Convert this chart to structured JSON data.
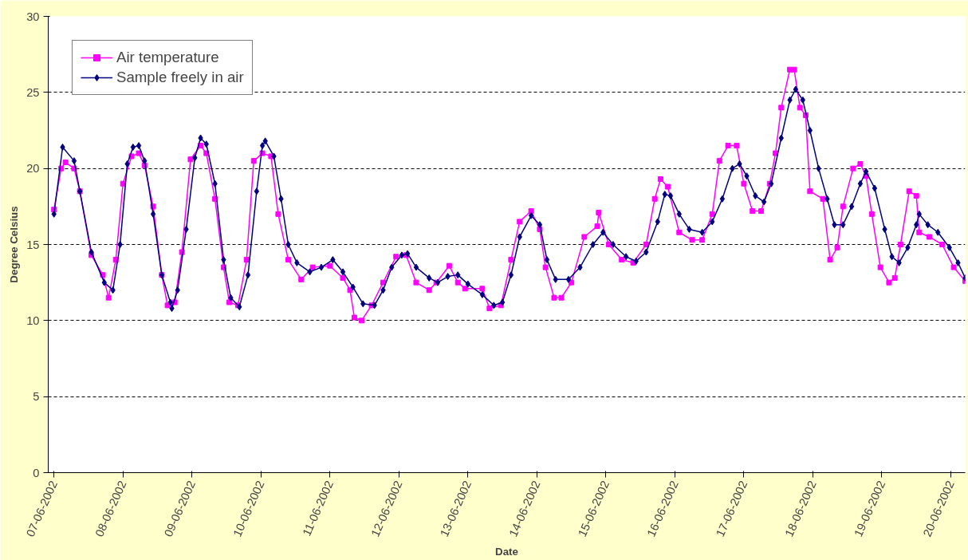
{
  "chart_data": {
    "type": "line",
    "xlabel": "Date",
    "ylabel": "Degree Celsius",
    "xlim": [
      "2002-06-06T22:00",
      "2002-06-20T05:00"
    ],
    "ylim": [
      0,
      30
    ],
    "yticks": [
      0,
      5,
      10,
      15,
      20,
      25,
      30
    ],
    "xticks": [
      {
        "value": "2002-06-07",
        "label": "07-06-2002"
      },
      {
        "value": "2002-06-08",
        "label": "08-06-2002"
      },
      {
        "value": "2002-06-09",
        "label": "09-06-2002"
      },
      {
        "value": "2002-06-10",
        "label": "10-06-2002"
      },
      {
        "value": "2002-06-11",
        "label": "11-06-2002"
      },
      {
        "value": "2002-06-12",
        "label": "12-06-2002"
      },
      {
        "value": "2002-06-13",
        "label": "13-06-2002"
      },
      {
        "value": "2002-06-14",
        "label": "14-06-2002"
      },
      {
        "value": "2002-06-15",
        "label": "15-06-2002"
      },
      {
        "value": "2002-06-16",
        "label": "16-06-2002"
      },
      {
        "value": "2002-06-17",
        "label": "17-06-2002"
      },
      {
        "value": "2002-06-18",
        "label": "18-06-2002"
      },
      {
        "value": "2002-06-19",
        "label": "19-06-2002"
      },
      {
        "value": "2002-06-20",
        "label": "20-06-2002"
      }
    ],
    "grid": "y",
    "legend": "top left",
    "line_style": "solid",
    "series": [
      {
        "name": "Air temperature",
        "color": "#ff00ff",
        "marker": "square",
        "x": [
          "2002-06-07T00:00",
          "2002-06-07T02:30",
          "2002-06-07T04:00",
          "2002-06-07T07:00",
          "2002-06-07T09:00",
          "2002-06-07T13:00",
          "2002-06-07T17:00",
          "2002-06-07T19:00",
          "2002-06-07T21:30",
          "2002-06-08T00:00",
          "2002-06-08T03:00",
          "2002-06-08T05:30",
          "2002-06-08T07:30",
          "2002-06-08T10:30",
          "2002-06-08T13:30",
          "2002-06-08T15:30",
          "2002-06-08T18:00",
          "2002-06-08T20:30",
          "2002-06-08T23:30",
          "2002-06-09T03:00",
          "2002-06-09T05:00",
          "2002-06-09T08:00",
          "2002-06-09T11:00",
          "2002-06-09T13:00",
          "2002-06-09T16:00",
          "2002-06-09T19:00",
          "2002-06-09T21:30",
          "2002-06-10T00:30",
          "2002-06-10T03:30",
          "2002-06-10T06:00",
          "2002-06-10T09:30",
          "2002-06-10T14:00",
          "2002-06-10T18:00",
          "2002-06-11T00:00",
          "2002-06-11T04:30",
          "2002-06-11T07:00",
          "2002-06-11T08:30",
          "2002-06-11T11:00",
          "2002-06-11T14:30",
          "2002-06-11T18:30",
          "2002-06-11T23:00",
          "2002-06-12T02:30",
          "2002-06-12T06:00",
          "2002-06-12T10:30",
          "2002-06-12T13:00",
          "2002-06-12T17:30",
          "2002-06-12T20:30",
          "2002-06-12T23:00",
          "2002-06-13T05:00",
          "2002-06-13T07:30",
          "2002-06-13T11:30",
          "2002-06-13T15:00",
          "2002-06-13T18:00",
          "2002-06-13T22:00",
          "2002-06-14T01:00",
          "2002-06-14T03:00",
          "2002-06-14T06:00",
          "2002-06-14T08:30",
          "2002-06-14T12:00",
          "2002-06-14T16:30",
          "2002-06-14T21:00",
          "2002-06-14T21:30",
          "2002-06-15T01:00",
          "2002-06-15T05:30",
          "2002-06-15T09:30",
          "2002-06-15T14:00",
          "2002-06-15T17:00",
          "2002-06-15T19:00",
          "2002-06-15T21:30",
          "2002-06-16T01:30",
          "2002-06-16T06:00",
          "2002-06-16T09:30",
          "2002-06-16T13:00",
          "2002-06-16T15:30",
          "2002-06-16T18:30",
          "2002-06-16T21:30",
          "2002-06-17T00:00",
          "2002-06-17T03:00",
          "2002-06-17T06:00",
          "2002-06-17T09:00",
          "2002-06-17T11:00",
          "2002-06-17T13:00",
          "2002-06-17T16:00",
          "2002-06-17T17:30",
          "2002-06-17T19:30",
          "2002-06-17T21:30",
          "2002-06-17T23:00",
          "2002-06-18T03:30",
          "2002-06-18T06:00",
          "2002-06-18T08:30",
          "2002-06-18T10:30",
          "2002-06-18T14:00",
          "2002-06-18T16:30",
          "2002-06-18T18:30",
          "2002-06-18T20:30",
          "2002-06-18T23:30",
          "2002-06-19T02:30",
          "2002-06-19T04:30",
          "2002-06-19T06:30",
          "2002-06-19T09:30",
          "2002-06-19T12:00",
          "2002-06-19T13:00",
          "2002-06-19T16:30",
          "2002-06-19T21:00",
          "2002-06-20T01:00",
          "2002-06-20T05:00"
        ],
        "values": [
          17.3,
          20,
          20.4,
          20,
          18.5,
          14.3,
          13,
          11.5,
          14,
          19,
          20.8,
          21.0,
          20.2,
          17.5,
          13,
          11,
          11.2,
          14.5,
          20.6,
          21.5,
          21.0,
          18,
          13.5,
          11.2,
          11.0,
          14,
          20.5,
          21.0,
          20.8,
          17,
          14,
          12.7,
          13.5,
          13.6,
          12.8,
          12,
          10.2,
          10.0,
          11,
          12.5,
          14.2,
          14.3,
          12.5,
          12,
          12.5,
          13.6,
          12.5,
          12.1,
          12.1,
          10.8,
          11,
          14,
          16.5,
          17.2,
          16,
          13.5,
          11.5,
          11.5,
          12.5,
          15.5,
          16.2,
          17.1,
          15,
          14,
          13.8,
          15,
          18,
          19.3,
          18.8,
          15.8,
          15.3,
          15.3,
          17,
          20.5,
          21.5,
          21.5,
          19,
          17.2,
          17.2,
          19,
          21,
          24,
          26.5,
          26.5,
          24,
          23.5,
          18.5,
          18,
          14,
          14.8,
          17.5,
          20,
          20.3,
          19.5,
          17,
          13.5,
          12.5,
          12.8,
          15,
          18.5,
          18.2,
          15.8,
          15.5,
          15,
          13.5,
          12.6
        ]
      },
      {
        "name": "Sample freely in air",
        "color": "#000080",
        "marker": "diamond",
        "x": [
          "2002-06-07T00:00",
          "2002-06-07T03:00",
          "2002-06-07T07:00",
          "2002-06-07T09:00",
          "2002-06-07T13:00",
          "2002-06-07T17:30",
          "2002-06-07T20:30",
          "2002-06-07T23:00",
          "2002-06-08T01:30",
          "2002-06-08T03:30",
          "2002-06-08T05:30",
          "2002-06-08T07:30",
          "2002-06-08T10:30",
          "2002-06-08T13:30",
          "2002-06-08T16:30",
          "2002-06-08T17:00",
          "2002-06-08T19:00",
          "2002-06-08T22:00",
          "2002-06-09T01:00",
          "2002-06-09T03:00",
          "2002-06-09T05:00",
          "2002-06-09T08:00",
          "2002-06-09T11:00",
          "2002-06-09T13:30",
          "2002-06-09T16:30",
          "2002-06-09T19:30",
          "2002-06-09T22:30",
          "2002-06-10T00:30",
          "2002-06-10T01:30",
          "2002-06-10T04:30",
          "2002-06-10T07:00",
          "2002-06-10T09:30",
          "2002-06-10T12:30",
          "2002-06-10T17:00",
          "2002-06-10T21:00",
          "2002-06-11T01:00",
          "2002-06-11T04:30",
          "2002-06-11T08:00",
          "2002-06-11T11:30",
          "2002-06-11T15:30",
          "2002-06-11T18:30",
          "2002-06-11T21:30",
          "2002-06-12T01:00",
          "2002-06-12T03:00",
          "2002-06-12T06:00",
          "2002-06-12T10:30",
          "2002-06-12T13:30",
          "2002-06-12T17:00",
          "2002-06-12T20:30",
          "2002-06-13T00:00",
          "2002-06-13T05:00",
          "2002-06-13T09:00",
          "2002-06-13T12:00",
          "2002-06-13T15:00",
          "2002-06-13T18:00",
          "2002-06-13T22:00",
          "2002-06-14T01:00",
          "2002-06-14T03:30",
          "2002-06-14T06:30",
          "2002-06-14T11:00",
          "2002-06-14T15:00",
          "2002-06-14T19:30",
          "2002-06-14T23:00",
          "2002-06-15T02:30",
          "2002-06-15T07:00",
          "2002-06-15T10:30",
          "2002-06-15T14:00",
          "2002-06-15T18:00",
          "2002-06-15T20:30",
          "2002-06-15T22:30",
          "2002-06-16T01:30",
          "2002-06-16T05:00",
          "2002-06-16T09:30",
          "2002-06-16T13:00",
          "2002-06-16T16:30",
          "2002-06-16T20:00",
          "2002-06-16T22:30",
          "2002-06-17T01:00",
          "2002-06-17T04:00",
          "2002-06-17T07:00",
          "2002-06-17T09:30",
          "2002-06-17T13:00",
          "2002-06-17T16:00",
          "2002-06-17T18:00",
          "2002-06-17T20:30",
          "2002-06-17T23:00",
          "2002-06-18T02:00",
          "2002-06-18T05:00",
          "2002-06-18T07:30",
          "2002-06-18T10:30",
          "2002-06-18T13:30",
          "2002-06-18T16:30",
          "2002-06-18T18:30",
          "2002-06-18T21:30",
          "2002-06-19T01:00",
          "2002-06-19T03:30",
          "2002-06-19T06:00",
          "2002-06-19T09:00",
          "2002-06-19T12:00",
          "2002-06-19T13:00",
          "2002-06-19T16:00",
          "2002-06-19T19:30",
          "2002-06-19T23:30",
          "2002-06-20T02:30",
          "2002-06-20T05:00"
        ],
        "values": [
          17.0,
          21.4,
          20.5,
          18.5,
          14.5,
          12.5,
          12.0,
          15.0,
          20.3,
          21.4,
          21.5,
          20.5,
          17,
          13,
          11.2,
          10.8,
          12,
          16,
          20.7,
          22.0,
          21.6,
          19,
          14,
          11.5,
          10.9,
          13,
          18.5,
          21.5,
          21.8,
          20.8,
          18,
          15,
          13.8,
          13.2,
          13.5,
          14.0,
          13.2,
          12.2,
          11.1,
          11.0,
          12,
          13.5,
          14.3,
          14.4,
          13.5,
          12.8,
          12.5,
          12.9,
          13.0,
          12.4,
          11.7,
          11.0,
          11.2,
          13,
          15.5,
          16.9,
          16.3,
          14,
          12.7,
          12.7,
          13.5,
          15,
          15.8,
          15,
          14.2,
          13.9,
          14.5,
          16.5,
          18.3,
          18.2,
          17,
          16,
          15.8,
          16.5,
          18,
          20,
          20.3,
          19.5,
          18.2,
          17.8,
          19,
          22,
          24.5,
          25.2,
          24.5,
          22.5,
          20,
          18,
          16.3,
          16.3,
          17.5,
          19.0,
          19.8,
          18.7,
          16,
          14.2,
          13.8,
          14.8,
          16.3,
          17.0,
          16.3,
          15.8,
          14.8,
          13.8,
          12.8
        ]
      }
    ]
  }
}
